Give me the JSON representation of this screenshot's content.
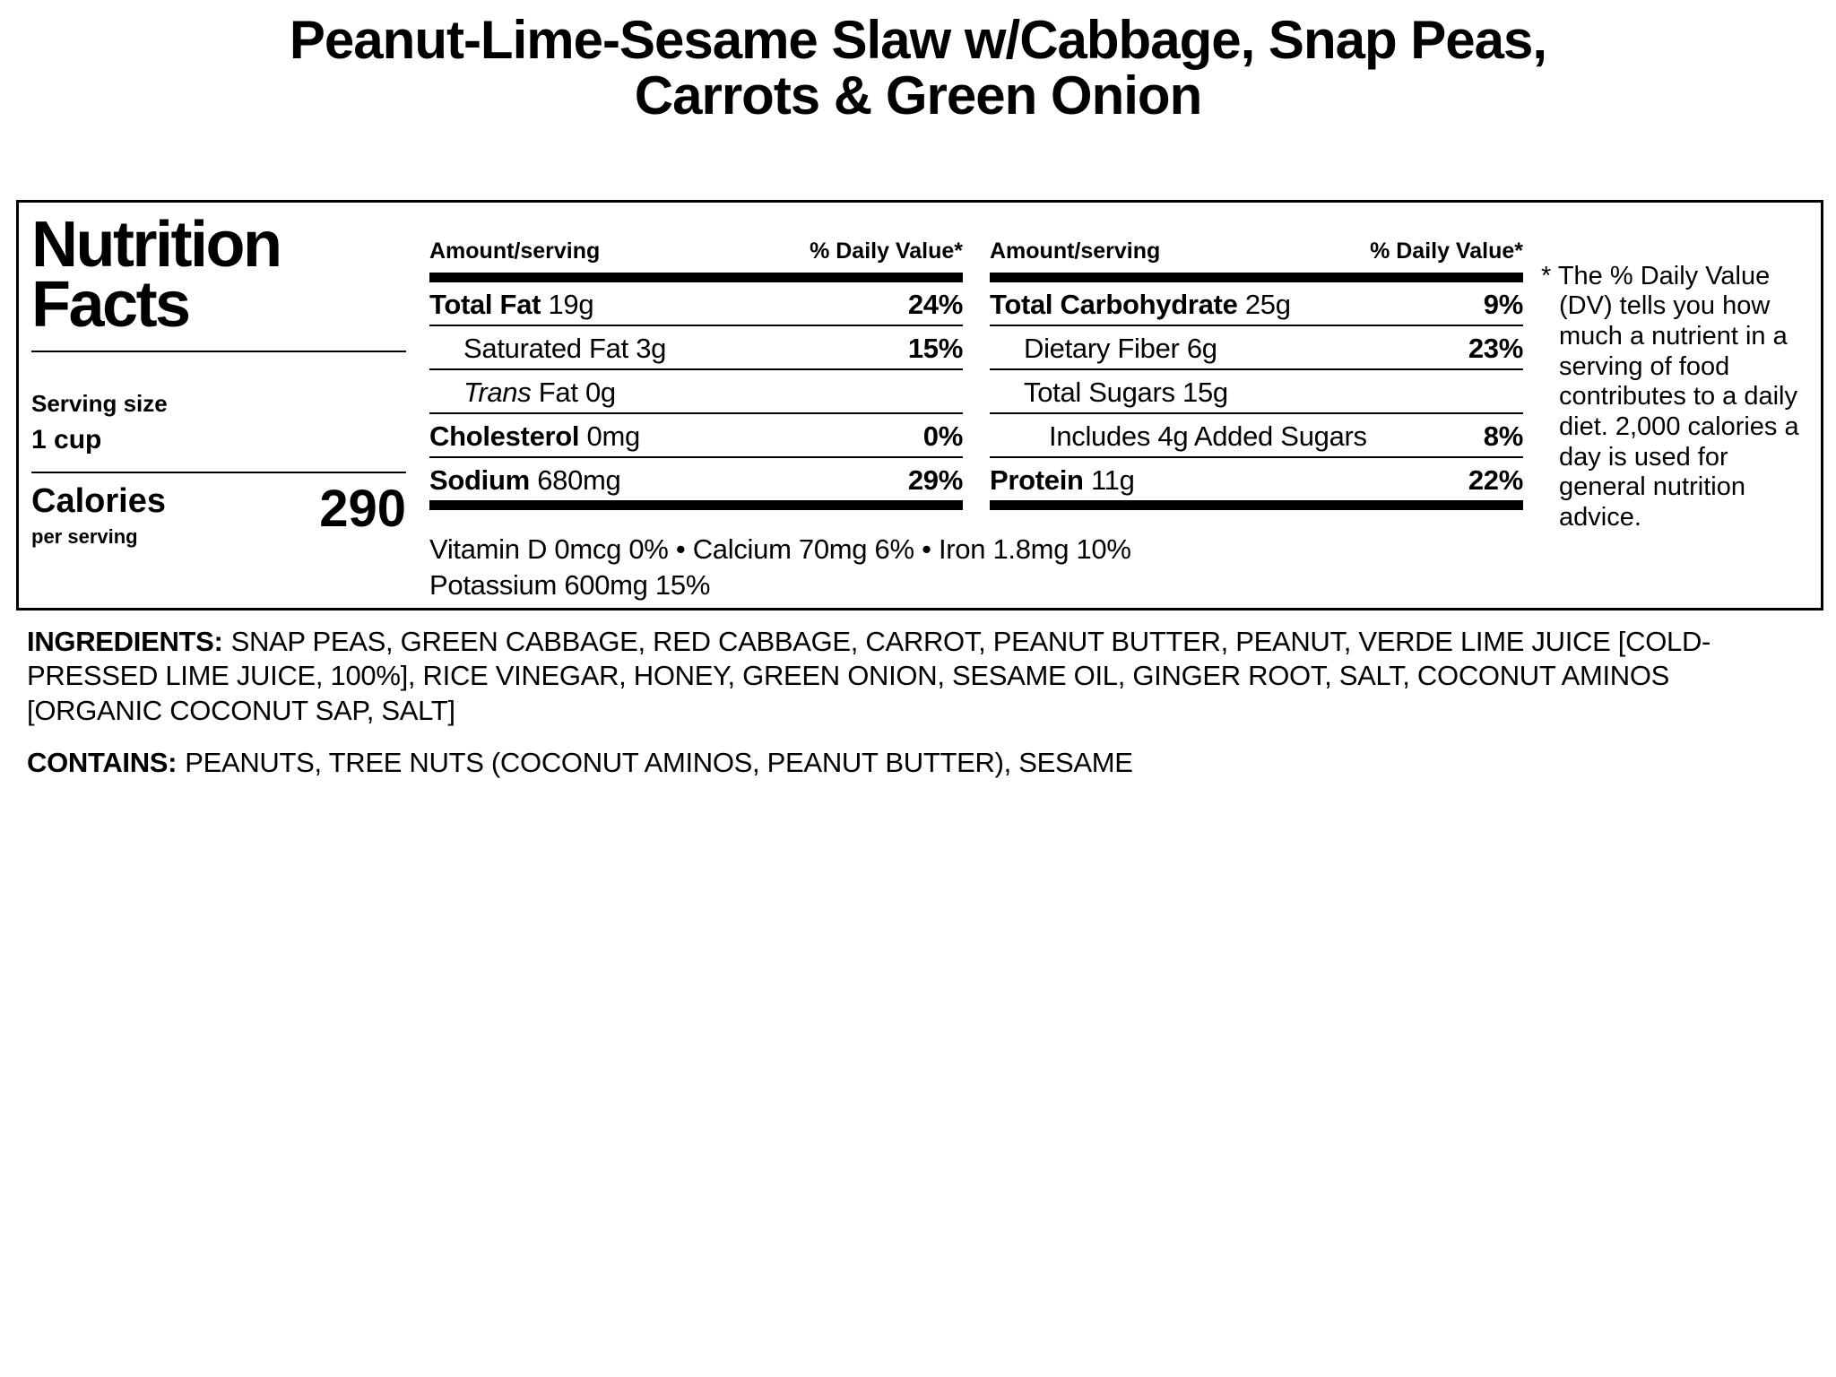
{
  "title": {
    "line1": "Peanut-Lime-Sesame Slaw w/Cabbage, Snap Peas,",
    "line2": "Carrots & Green Onion"
  },
  "panel": {
    "heading": "Nutrition Facts",
    "serving_size": {
      "label": "Serving size",
      "value": "1 cup"
    },
    "calories": {
      "label": "Calories",
      "sublabel": "per serving",
      "value": "290"
    },
    "columns": [
      {
        "amount_header": "Amount/serving",
        "dv_header": "% Daily Value*",
        "rows": [
          {
            "bold": "Total Fat",
            "italic": "",
            "rest": " 19g",
            "dv": "24%"
          },
          {
            "bold": "",
            "italic": "",
            "rest": "Saturated Fat 3g",
            "dv": "15%"
          },
          {
            "bold": "",
            "italic": "Trans",
            "rest": " Fat 0g",
            "dv": ""
          },
          {
            "bold": "Cholesterol",
            "italic": "",
            "rest": " 0mg",
            "dv": "0%"
          },
          {
            "bold": "Sodium",
            "italic": "",
            "rest": " 680mg",
            "dv": "29%"
          }
        ]
      },
      {
        "amount_header": "Amount/serving",
        "dv_header": "% Daily Value*",
        "rows": [
          {
            "bold": "Total Carbohydrate",
            "italic": "",
            "rest": " 25g",
            "dv": "9%"
          },
          {
            "bold": "",
            "italic": "",
            "rest": "Dietary Fiber 6g",
            "dv": "23%"
          },
          {
            "bold": "",
            "italic": "",
            "rest": "Total Sugars 15g",
            "dv": ""
          },
          {
            "bold": "",
            "italic": "",
            "rest": "Includes 4g Added Sugars",
            "dv": "8%"
          },
          {
            "bold": "Protein",
            "italic": "",
            "rest": " 11g",
            "dv": "22%"
          }
        ]
      }
    ],
    "micronutrients": {
      "line1": "Vitamin D 0mcg 0% • Calcium 70mg 6% • Iron 1.8mg 10%",
      "line2": "Potassium 600mg 15%"
    },
    "footnote": "* The % Daily Value (DV) tells you how much a nutrient in a serving of food contributes to a daily diet. 2,000 calories a day is used for general nutrition advice."
  },
  "ingredients": {
    "label": "INGREDIENTS:",
    "text": "SNAP PEAS, GREEN CABBAGE, RED CABBAGE, CARROT, PEANUT BUTTER, PEANUT, VERDE LIME JUICE [COLD-PRESSED LIME JUICE, 100%], RICE VINEGAR, HONEY, GREEN ONION, SESAME OIL, GINGER ROOT, SALT, COCONUT AMINOS [ORGANIC COCONUT SAP, SALT]"
  },
  "contains": {
    "label": "CONTAINS:",
    "text": "PEANUTS, TREE NUTS (COCONUT AMINOS, PEANUT BUTTER), SESAME"
  }
}
